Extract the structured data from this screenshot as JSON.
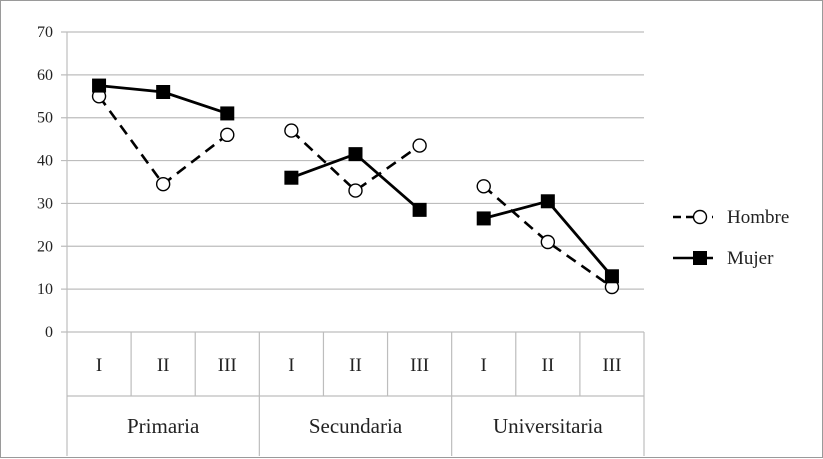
{
  "chart_data": {
    "type": "line",
    "title": "",
    "xlabel": "",
    "ylabel": "",
    "ylim": [
      0,
      70
    ],
    "yticks": [
      "0",
      "10",
      "20",
      "30",
      "40",
      "50",
      "60",
      "70"
    ],
    "grid": true,
    "legend_position": "right",
    "groups": [
      {
        "name": "Primaria",
        "categories": [
          "I",
          "II",
          "III"
        ]
      },
      {
        "name": "Secundaria",
        "categories": [
          "I",
          "II",
          "III"
        ]
      },
      {
        "name": "Universitaria",
        "categories": [
          "I",
          "II",
          "III"
        ]
      }
    ],
    "series": [
      {
        "name": "Hombre",
        "style": "dashed",
        "marker": "open-circle",
        "color": "#000000",
        "segments": [
          [
            55,
            34.5,
            46
          ],
          [
            47,
            33,
            43.5
          ],
          [
            34,
            21,
            10.5
          ]
        ]
      },
      {
        "name": "Mujer",
        "style": "solid",
        "marker": "filled-square",
        "color": "#000000",
        "segments": [
          [
            57.5,
            56,
            51
          ],
          [
            36,
            41.5,
            28.5
          ],
          [
            26.5,
            30.5,
            13
          ]
        ]
      }
    ]
  }
}
